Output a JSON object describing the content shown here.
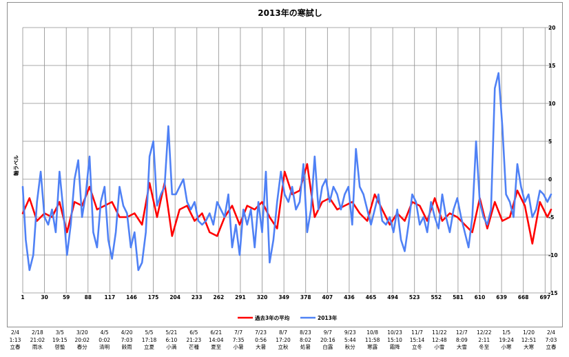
{
  "chart_data": {
    "type": "line",
    "title": "2013年の寒試し",
    "ylabel": "軸ラベル",
    "ylim": [
      -15,
      20
    ],
    "y_ticks": [
      20,
      15,
      10,
      5,
      0,
      -5,
      -10,
      -15
    ],
    "x_ticks": [
      1,
      30,
      59,
      88,
      117,
      146,
      175,
      204,
      233,
      262,
      291,
      320,
      349,
      378,
      407,
      436,
      465,
      494,
      523,
      552,
      581,
      610,
      639,
      668,
      697
    ],
    "xlim": [
      1,
      705
    ],
    "grid": true,
    "legend_position": "bottom",
    "series": [
      {
        "name": "過去3年の平均",
        "color": "#ff0000",
        "x": [
          1,
          10,
          20,
          30,
          40,
          50,
          60,
          70,
          80,
          90,
          100,
          110,
          120,
          130,
          140,
          150,
          160,
          170,
          180,
          190,
          200,
          210,
          220,
          230,
          240,
          250,
          260,
          270,
          280,
          290,
          300,
          310,
          320,
          330,
          340,
          350,
          360,
          370,
          380,
          390,
          400,
          410,
          420,
          430,
          440,
          450,
          460,
          470,
          480,
          490,
          500,
          510,
          520,
          530,
          540,
          550,
          560,
          570,
          580,
          590,
          600,
          610,
          620,
          630,
          640,
          650,
          660,
          670,
          680,
          690,
          700,
          705
        ],
        "values": [
          -4.5,
          -2.5,
          -5.5,
          -4.5,
          -5.0,
          -3.0,
          -7.0,
          -3.0,
          -3.5,
          -1.0,
          -4.0,
          -3.5,
          -3.0,
          -5.0,
          -5.0,
          -4.5,
          -6.0,
          -0.5,
          -5.0,
          -0.5,
          -7.5,
          -4.0,
          -3.5,
          -5.5,
          -4.5,
          -7.0,
          -7.5,
          -5.0,
          -3.5,
          -6.0,
          -3.5,
          -4.0,
          -3.0,
          -5.0,
          -6.5,
          1.0,
          -2.0,
          -1.5,
          2.0,
          -5.0,
          -3.0,
          -2.5,
          -4.0,
          -3.5,
          -3.0,
          -4.5,
          -5.5,
          -2.0,
          -4.0,
          -6.0,
          -4.5,
          -5.5,
          -3.0,
          -3.5,
          -5.5,
          -2.5,
          -5.5,
          -4.5,
          -5.0,
          -6.0,
          -7.0,
          -2.5,
          -6.5,
          -3.0,
          -5.5,
          -5.0,
          -1.5,
          -3.5,
          -8.5,
          -3.0,
          -5.0,
          -4.0
        ]
      },
      {
        "name": "2013年",
        "color": "#4f81f5",
        "x": [
          1,
          5,
          10,
          15,
          20,
          25,
          30,
          35,
          40,
          45,
          50,
          55,
          60,
          65,
          70,
          75,
          80,
          85,
          90,
          95,
          100,
          105,
          110,
          115,
          120,
          125,
          130,
          135,
          140,
          145,
          150,
          155,
          160,
          165,
          170,
          175,
          180,
          185,
          190,
          195,
          200,
          205,
          210,
          215,
          220,
          225,
          230,
          235,
          240,
          245,
          250,
          255,
          260,
          265,
          270,
          275,
          280,
          285,
          290,
          295,
          300,
          305,
          310,
          315,
          320,
          325,
          330,
          335,
          340,
          345,
          350,
          355,
          360,
          365,
          370,
          375,
          380,
          385,
          390,
          395,
          400,
          405,
          410,
          415,
          420,
          425,
          430,
          435,
          440,
          445,
          450,
          455,
          460,
          465,
          470,
          475,
          480,
          485,
          490,
          495,
          500,
          505,
          510,
          515,
          520,
          525,
          530,
          535,
          540,
          545,
          550,
          555,
          560,
          565,
          570,
          575,
          580,
          585,
          590,
          595,
          600,
          605,
          610,
          615,
          620,
          625,
          630,
          635,
          640,
          645,
          650,
          655,
          660,
          665,
          670,
          675,
          680,
          685,
          690,
          695,
          700,
          705
        ],
        "values": [
          -1.0,
          -8.0,
          -12.0,
          -10.0,
          -3.0,
          1.0,
          -5.0,
          -6.0,
          -4.0,
          -7.0,
          1.0,
          -4.0,
          -10.0,
          -6.0,
          0.0,
          2.5,
          -5.0,
          -2.0,
          3.0,
          -7.0,
          -9.0,
          -3.0,
          -1.0,
          -8.0,
          -10.5,
          -7.0,
          -1.0,
          -3.5,
          -4.5,
          -9.0,
          -7.0,
          -12.0,
          -11.0,
          -7.0,
          3.0,
          5.0,
          -3.5,
          -2.0,
          -1.0,
          7.0,
          -2.0,
          -2.0,
          -1.0,
          0.0,
          -3.0,
          -4.0,
          -3.0,
          -5.5,
          -6.0,
          -5.5,
          -4.5,
          -6.0,
          -3.0,
          -4.0,
          -5.0,
          -2.0,
          -9.0,
          -6.0,
          -10.0,
          -4.0,
          -6.0,
          -4.0,
          -9.0,
          -3.0,
          -7.0,
          1.0,
          -11.0,
          -8.0,
          -3.0,
          1.0,
          -2.0,
          -3.0,
          -1.0,
          -4.0,
          -3.0,
          2.0,
          -7.0,
          -4.0,
          3.0,
          -4.0,
          -1.0,
          0.0,
          -3.0,
          -1.0,
          -2.0,
          -4.0,
          -2.0,
          -1.0,
          -6.0,
          4.0,
          -1.0,
          -2.0,
          -4.0,
          -6.0,
          -4.0,
          -2.0,
          -5.5,
          -6.0,
          -5.0,
          -7.0,
          -4.0,
          -8.0,
          -9.5,
          -6.0,
          -2.0,
          -3.0,
          -6.0,
          -5.0,
          -7.0,
          -3.0,
          -5.0,
          -6.5,
          -2.0,
          -5.0,
          -7.0,
          -4.0,
          -2.5,
          -5.0,
          -7.0,
          -9.0,
          -5.0,
          5.0,
          -3.0,
          -5.0,
          -6.0,
          -4.0,
          12.0,
          14.0,
          7.0,
          -2.0,
          -3.0,
          -5.0,
          2.0,
          -1.0,
          -3.0,
          -2.0,
          -5.0,
          -4.0,
          -1.5,
          -2.0,
          -3.0,
          -2.0
        ]
      }
    ],
    "seasons": [
      {
        "date": "2/4",
        "time": "1:13",
        "name": "立春"
      },
      {
        "date": "2/18",
        "time": "21:02",
        "name": "雨水"
      },
      {
        "date": "3/5",
        "time": "19:15",
        "name": "啓蟄"
      },
      {
        "date": "3/20",
        "time": "20:02",
        "name": "春分"
      },
      {
        "date": "4/5",
        "time": "0:02",
        "name": "清明"
      },
      {
        "date": "4/20",
        "time": "7:03",
        "name": "穀雨"
      },
      {
        "date": "5/5",
        "time": "17:18",
        "name": "立夏"
      },
      {
        "date": "5/21",
        "time": "6:10",
        "name": "小満"
      },
      {
        "date": "6/5",
        "time": "21:23",
        "name": "芒種"
      },
      {
        "date": "6/21",
        "time": "14:04",
        "name": "夏至"
      },
      {
        "date": "7/7",
        "time": "7:35",
        "name": "小暑"
      },
      {
        "date": "7/23",
        "time": "0:56",
        "name": "大暑"
      },
      {
        "date": "8/7",
        "time": "17:20",
        "name": "立秋"
      },
      {
        "date": "8/23",
        "time": "8:02",
        "name": "処暑"
      },
      {
        "date": "9/7",
        "time": "20:16",
        "name": "白露"
      },
      {
        "date": "9/23",
        "time": "5:44",
        "name": "秋分"
      },
      {
        "date": "10/8",
        "time": "11:58",
        "name": "寒露"
      },
      {
        "date": "10/23",
        "time": "15:10",
        "name": "霜降"
      },
      {
        "date": "11/7",
        "time": "15:14",
        "name": "立冬"
      },
      {
        "date": "11/22",
        "time": "12:48",
        "name": "小雪"
      },
      {
        "date": "12/7",
        "time": "8:09",
        "name": "大雪"
      },
      {
        "date": "12/22",
        "time": "2:11",
        "name": "冬至"
      },
      {
        "date": "1/5",
        "time": "19:24",
        "name": "小寒"
      },
      {
        "date": "1/20",
        "time": "12:51",
        "name": "大寒"
      },
      {
        "date": "2/4",
        "time": "7:03",
        "name": "立春"
      }
    ]
  }
}
